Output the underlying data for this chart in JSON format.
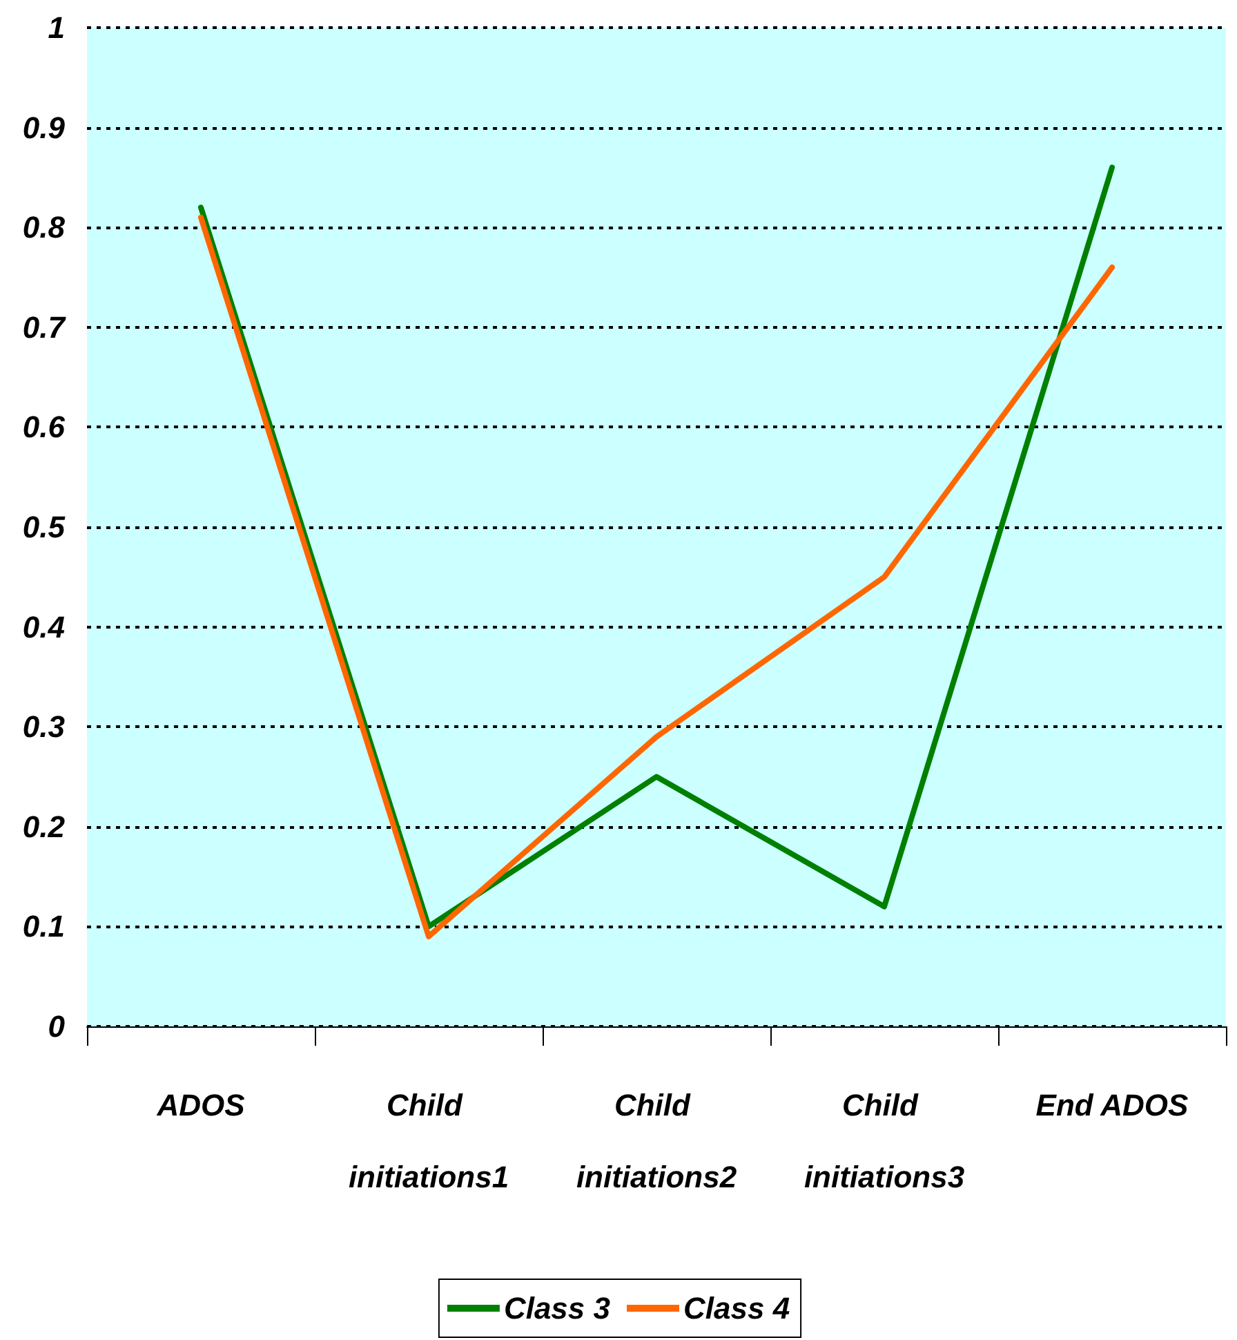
{
  "chart_data": {
    "type": "line",
    "categories": [
      "ADOS",
      "Child initiations1",
      "Child initiations2",
      "Child initiations3",
      "End ADOS"
    ],
    "series": [
      {
        "name": "Class 3",
        "color": "#008000",
        "values": [
          0.82,
          0.1,
          0.25,
          0.12,
          0.86
        ]
      },
      {
        "name": "Class 4",
        "color": "#ff6600",
        "values": [
          0.81,
          0.09,
          0.29,
          0.45,
          0.76
        ]
      }
    ],
    "ylim": [
      0,
      1
    ],
    "yticks": [
      0,
      0.1,
      0.2,
      0.3,
      0.4,
      0.5,
      0.6,
      0.7,
      0.8,
      0.9,
      1
    ],
    "grid": "y",
    "legend": "bottom",
    "marker": "none",
    "line_style": "solid"
  }
}
